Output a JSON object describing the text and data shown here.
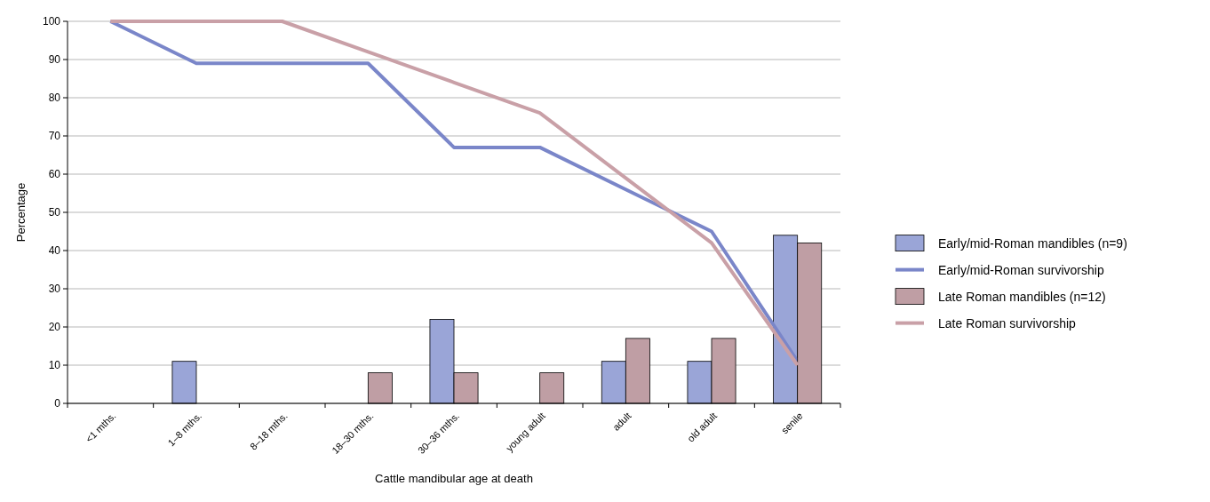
{
  "chart_data": {
    "type": "bar",
    "xlabel": "Cattle mandibular age at death",
    "ylabel": "Percentage",
    "categories": [
      "<1 mths.",
      "1–8 mths.",
      "8–18 mths.",
      "18–30 mths.",
      "30–36 mths.",
      "young adult",
      "adult",
      "old adult",
      "senile"
    ],
    "series": [
      {
        "name": "Early/mid-Roman mandibles (n=9)",
        "color": "#9aa5d7",
        "values": [
          0,
          11,
          0,
          0,
          22,
          0,
          11,
          11,
          44
        ]
      },
      {
        "name": "Early/mid-Roman survivorship",
        "type": "line",
        "color": "#7a86c9",
        "values": [
          100,
          89,
          89,
          89,
          67,
          67,
          56,
          45,
          11
        ]
      },
      {
        "name": "Late Roman mandibles (n=12)",
        "color": "#bf9ea4",
        "values": [
          0,
          0,
          0,
          8,
          8,
          8,
          17,
          17,
          42
        ]
      },
      {
        "name": "Late Roman survivorship",
        "type": "line",
        "color": "#c9a0a7",
        "values": [
          100,
          100,
          100,
          92,
          84,
          76,
          59,
          42,
          10
        ]
      }
    ],
    "ylim": [
      0,
      100
    ],
    "yticks": [
      0,
      10,
      20,
      30,
      40,
      50,
      60,
      70,
      80,
      90,
      100
    ],
    "grid": "y",
    "legend": "right"
  }
}
